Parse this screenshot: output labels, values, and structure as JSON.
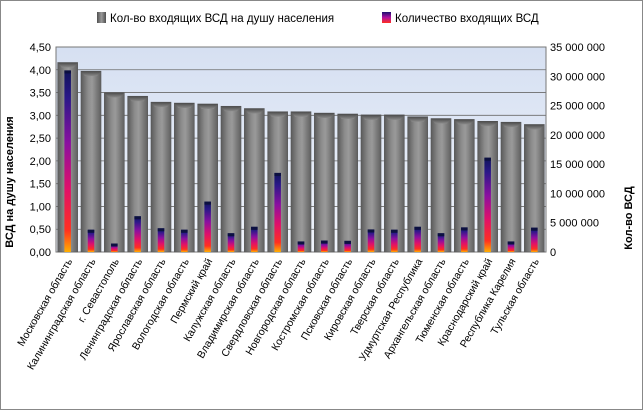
{
  "chart_data": {
    "type": "bar",
    "categories": [
      "Московская  область",
      "Калининградская  область",
      "г. Севастополь",
      "Ленинградская  область",
      "Ярославская  область",
      "Вологодская  область",
      "Пермский  край",
      "Калужская  область",
      "Владимирская  область",
      "Свердловская  область",
      "Новгородская  область",
      "Костромская  область",
      "Псковская  область",
      "Кировская  область",
      "Тверская  область",
      "Удмуртская  Республика",
      "Архангельская  область",
      "Тюменская  область",
      "Краснодарский  край",
      "Республика  Карелия",
      "Тульская  область"
    ],
    "series": [
      {
        "name": "Кол-во  входящих  ВСД на душу  населения",
        "axis": "left",
        "values": [
          4.16,
          3.97,
          3.5,
          3.42,
          3.29,
          3.27,
          3.25,
          3.2,
          3.15,
          3.08,
          3.08,
          3.05,
          3.03,
          3.01,
          3.01,
          2.97,
          2.93,
          2.91,
          2.87,
          2.85,
          2.8
        ],
        "color": "#7f7f7f"
      },
      {
        "name": "Количество  входящих  ВСД",
        "axis": "right",
        "values": [
          31000000,
          3800000,
          1450000,
          6100000,
          4050000,
          3800000,
          8600000,
          3200000,
          4300000,
          13500000,
          1800000,
          1950000,
          1900000,
          3850000,
          3800000,
          4300000,
          3200000,
          4200000,
          16100000,
          1800000,
          4150000
        ],
        "color": "#1a1070"
      }
    ],
    "ylabel": "ВСД на душу населения",
    "ylabel_right": "Кол-во ВСД",
    "ylim": [
      0,
      4.5
    ],
    "ylim_right": [
      0,
      35000000
    ],
    "yticks": [
      "0,00",
      "0,50",
      "1,00",
      "1,50",
      "2,00",
      "2,50",
      "3,00",
      "3,50",
      "4,00",
      "4,50"
    ],
    "yticks_right": [
      "0",
      "5 000 000",
      "10 000 000",
      "15 000 000",
      "20 000 000",
      "25 000 000",
      "30 000 000",
      "35 000 000"
    ],
    "legend_position": "top",
    "grid": true
  }
}
